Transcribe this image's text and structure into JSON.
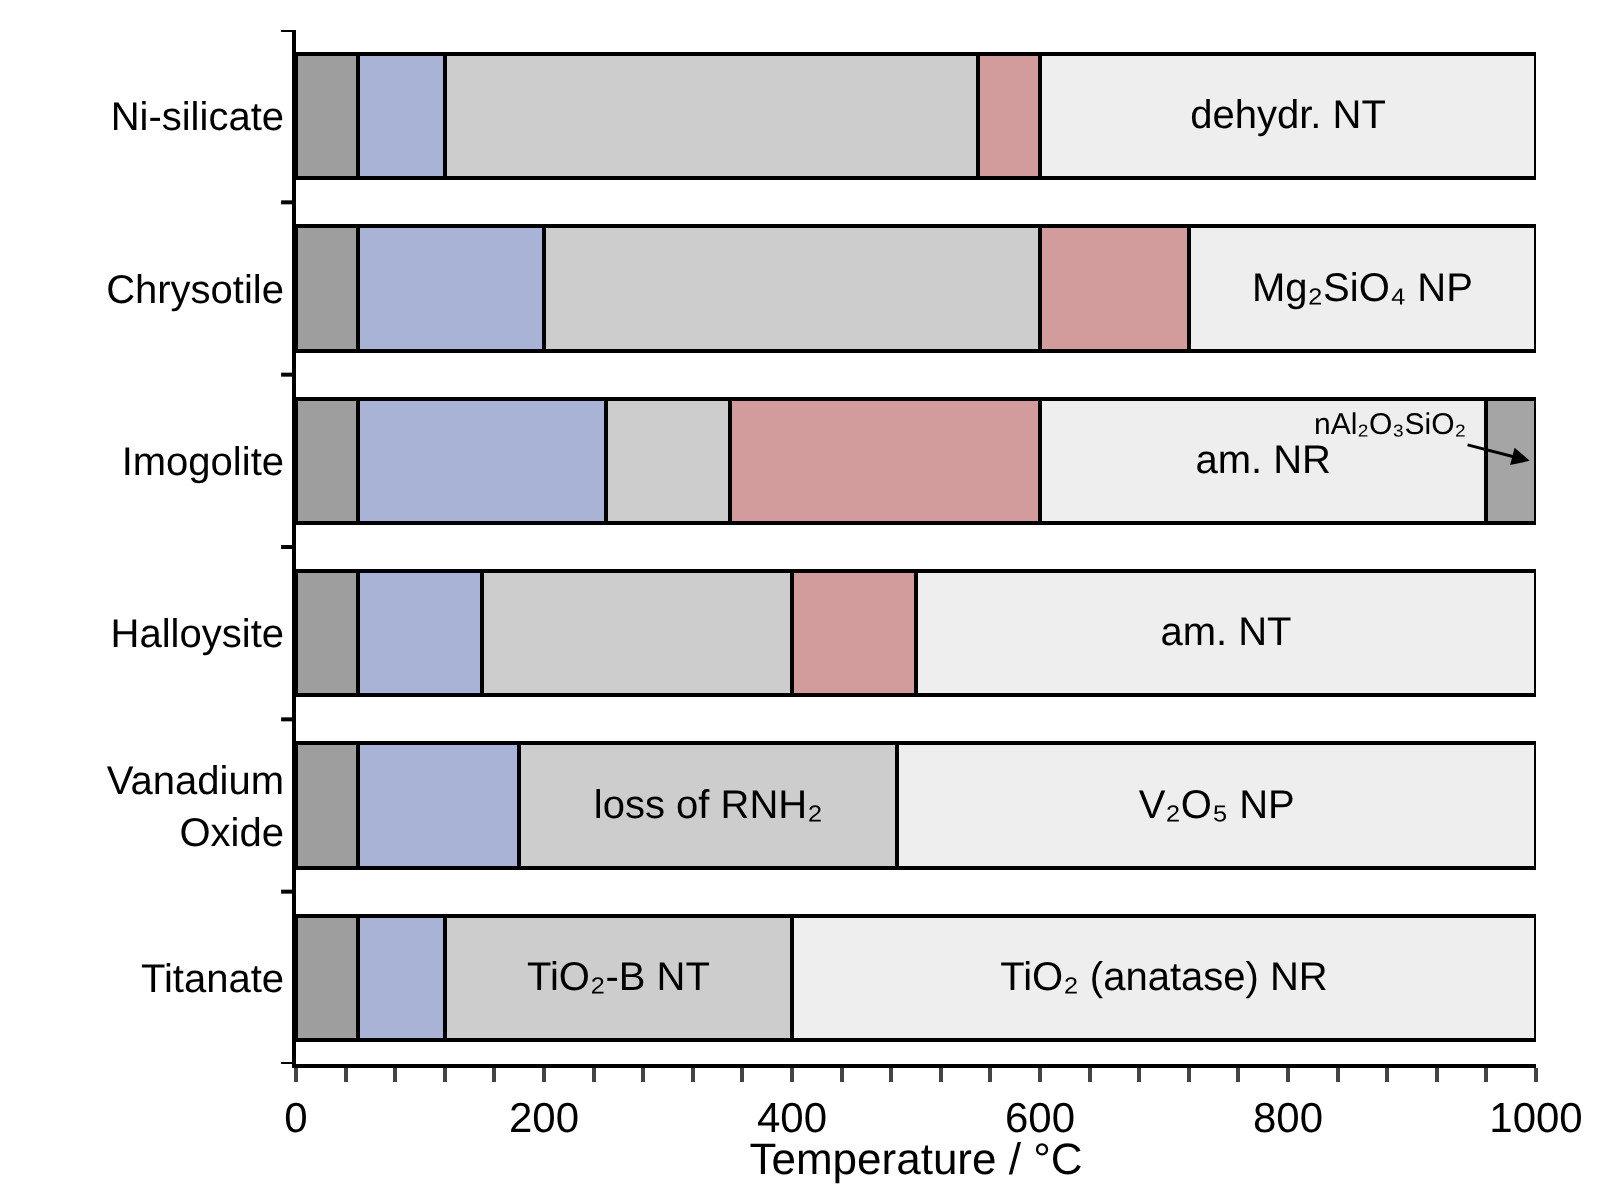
{
  "chart_data": {
    "type": "bar",
    "orientation": "horizontal",
    "stacked": true,
    "categories": [
      "Ni-silicate",
      "Chrysotile",
      "Imogolite",
      "Halloysite",
      "Vanadium Oxide",
      "Titanate"
    ],
    "series": [
      {
        "color": "#9e9e9e",
        "values": [
          50,
          50,
          50,
          50,
          50,
          50
        ]
      },
      {
        "color": "#a9b3d6",
        "values": [
          70,
          150,
          200,
          100,
          130,
          70
        ]
      },
      {
        "color": "#cdcdcd",
        "values": [
          430,
          400,
          100,
          250,
          305,
          280
        ],
        "value_labels": [
          null,
          null,
          null,
          null,
          "loss of RNH₂",
          "TiO₂-B NT"
        ]
      },
      {
        "color": "#d39c9c",
        "values": [
          50,
          120,
          250,
          100,
          null,
          null
        ]
      },
      {
        "color": "#eeeeee",
        "values": [
          400,
          280,
          360,
          500,
          515,
          600
        ],
        "value_labels": [
          "dehydr. NT",
          "Mg₂SiO₄ NP",
          "am. NR",
          "am. NT",
          "V₂O₅ NP",
          "TiO₂ (anatase) NR"
        ]
      },
      {
        "color": "#a5a5a5",
        "values": [
          null,
          null,
          40,
          null,
          null,
          null
        ]
      }
    ],
    "xlabel": "Temperature / °C",
    "xlim": [
      0,
      1000
    ],
    "xticks": [
      0,
      {
        "value": 40,
        "label": null
      },
      {
        "value": 80,
        "label": null
      },
      {
        "value": 120,
        "label": null
      },
      {
        "value": 160,
        "label": null
      },
      200,
      {
        "value": 240,
        "label": null
      },
      {
        "value": 280,
        "label": null
      },
      {
        "value": 320,
        "label": null
      },
      {
        "value": 360,
        "label": null
      },
      400,
      {
        "value": 440,
        "label": null
      },
      {
        "value": 480,
        "label": null
      },
      {
        "value": 520,
        "label": null
      },
      {
        "value": 560,
        "label": null
      },
      600,
      {
        "value": 640,
        "label": null
      },
      {
        "value": 680,
        "label": null
      },
      {
        "value": 720,
        "label": null
      },
      {
        "value": 760,
        "label": null
      },
      800,
      {
        "value": 840,
        "label": null
      },
      {
        "value": 880,
        "label": null
      },
      {
        "value": 920,
        "label": null
      },
      {
        "value": 960,
        "label": null
      },
      1000
    ],
    "annotations": [
      {
        "text": "nAl₂O₃SiO₂",
        "x": 995,
        "y": "Imogolite"
      }
    ],
    "grid": false
  }
}
